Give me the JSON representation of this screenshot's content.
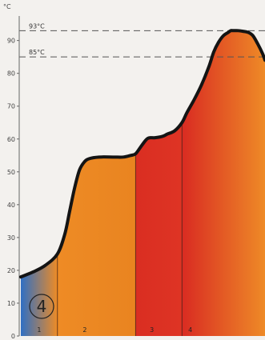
{
  "chart_data": {
    "type": "area",
    "title": "",
    "unit_label": "°C",
    "xlabel": "",
    "ylabel": "",
    "ylim": [
      0,
      96
    ],
    "yticks": [
      0,
      10,
      20,
      30,
      40,
      50,
      60,
      70,
      80,
      90
    ],
    "grid": false,
    "legend": "none",
    "badge": "4",
    "reference_lines": [
      {
        "label": "93°C",
        "value": 93
      },
      {
        "label": "85°C",
        "value": 85
      }
    ],
    "phases": [
      {
        "label": "1",
        "start": 0,
        "end": 15,
        "color_start": "#2f6fc4",
        "color_end": "#ee8b25"
      },
      {
        "label": "2",
        "start": 15,
        "end": 47,
        "color_start": "#ee8b25",
        "color_end": "#e98420"
      },
      {
        "label": "3",
        "start": 47,
        "end": 66,
        "color_start": "#da2e22",
        "color_end": "#de3424"
      },
      {
        "label": "4",
        "start": 66,
        "end": 100,
        "color_start": "#d92b22",
        "color_end": "#ee8a27"
      }
    ],
    "series": [
      {
        "x": [
          0,
          5,
          10,
          15,
          18,
          20,
          22,
          24,
          26,
          28,
          32,
          38,
          42,
          45,
          47,
          49,
          51,
          52,
          53,
          55,
          58,
          60,
          63,
          66,
          68,
          71,
          74,
          77,
          79,
          81,
          83,
          85,
          86,
          87,
          89,
          91,
          93,
          95,
          97,
          99,
          100
        ],
        "values": [
          18,
          19.5,
          21.5,
          25,
          31,
          38,
          45,
          50.5,
          53,
          54,
          54.5,
          54.5,
          54.5,
          55,
          55.5,
          57.5,
          59.5,
          60.2,
          60.4,
          60.4,
          60.8,
          61.5,
          62.5,
          65,
          68,
          72,
          76.5,
          82,
          86.5,
          89.5,
          91.5,
          92.5,
          93,
          93,
          93,
          92.8,
          92.5,
          91.5,
          89,
          86,
          84
        ]
      }
    ]
  }
}
